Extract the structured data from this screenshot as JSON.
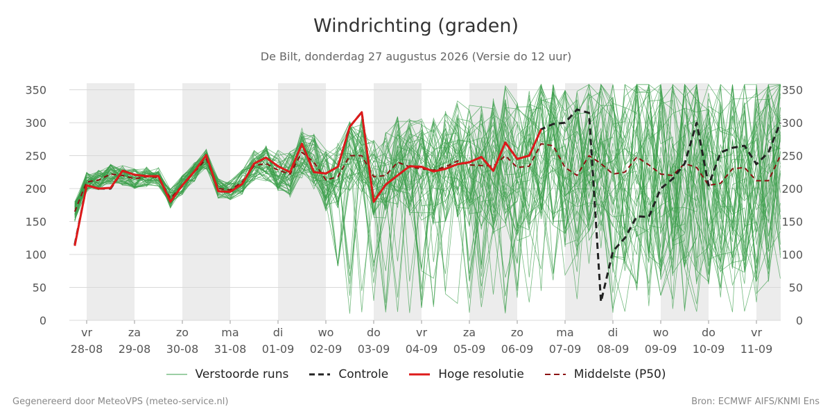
{
  "title": "Windrichting (graden)",
  "subtitle": "De Bilt, donderdag 27 augustus 2026 (Versie do 12 uur)",
  "footer_left": "Gegenereerd door MeteoVPS (meteo-service.nl)",
  "footer_right": "Bron: ECMWF AIFS/KNMI Ens",
  "legend": [
    {
      "label": "Verstoorde runs",
      "color": "#3a9e4a",
      "style": "thin"
    },
    {
      "label": "Controle",
      "color": "#222222",
      "style": "dashed"
    },
    {
      "label": "Hoge resolutie",
      "color": "#dd1a1a",
      "style": "solid"
    },
    {
      "label": "Middelste (P50)",
      "color": "#8b1010",
      "style": "dashed"
    }
  ],
  "chart_data": {
    "type": "line",
    "y_ticks": [
      0,
      50,
      100,
      150,
      200,
      250,
      300,
      350
    ],
    "ylim": [
      0,
      360
    ],
    "xlim": [
      -0.25,
      14.0
    ],
    "x_ticks": [
      {
        "day": "vr",
        "date": "28-08"
      },
      {
        "day": "za",
        "date": "29-08"
      },
      {
        "day": "zo",
        "date": "30-08"
      },
      {
        "day": "ma",
        "date": "31-08"
      },
      {
        "day": "di",
        "date": "01-09"
      },
      {
        "day": "wo",
        "date": "02-09"
      },
      {
        "day": "do",
        "date": "03-09"
      },
      {
        "day": "vr",
        "date": "04-09"
      },
      {
        "day": "za",
        "date": "05-09"
      },
      {
        "day": "zo",
        "date": "06-09"
      },
      {
        "day": "ma",
        "date": "07-09"
      },
      {
        "day": "di",
        "date": "08-09"
      },
      {
        "day": "wo",
        "date": "09-09"
      },
      {
        "day": "do",
        "date": "10-09"
      },
      {
        "day": "vr",
        "date": "11-09"
      }
    ],
    "shaded_days": [
      0,
      2,
      4,
      6,
      8,
      10,
      12,
      14
    ],
    "grid": true,
    "series": [
      {
        "name": "Hoge resolutie",
        "color": "#dd1a1a",
        "dash": false,
        "x": [
          -0.25,
          0,
          0.25,
          0.5,
          0.75,
          1.0,
          1.25,
          1.5,
          1.75,
          2.0,
          2.25,
          2.5,
          2.75,
          3.0,
          3.25,
          3.5,
          3.75,
          4.0,
          4.25,
          4.5,
          4.75,
          5.0,
          5.25,
          5.5,
          5.75,
          6.0,
          6.25,
          6.5,
          6.75,
          7.0,
          7.25,
          7.5,
          7.75,
          8.0,
          8.25,
          8.5,
          8.75,
          9.0,
          9.25,
          9.5
        ],
        "y": [
          113,
          205,
          200,
          201,
          227,
          221,
          219,
          219,
          180,
          205,
          226,
          251,
          196,
          195,
          207,
          238,
          247,
          234,
          225,
          268,
          225,
          223,
          233,
          294,
          316,
          180,
          206,
          220,
          234,
          233,
          226,
          230,
          237,
          240,
          248,
          227,
          270,
          245,
          250,
          290
        ]
      },
      {
        "name": "Controle",
        "color": "#222222",
        "dash": true,
        "x": [
          -0.25,
          0,
          0.25,
          0.5,
          0.75,
          1.0,
          1.25,
          1.5,
          1.75,
          2.0,
          2.25,
          2.5,
          2.75,
          3.0,
          3.25,
          3.5,
          3.75,
          4.0,
          4.25,
          4.5,
          4.75,
          5.0,
          5.25,
          5.5,
          5.75,
          6.0,
          6.25,
          6.5,
          6.75,
          7.0,
          7.25,
          7.5,
          7.75,
          8.0,
          8.25,
          8.5,
          8.75,
          9.0,
          9.25,
          9.5,
          9.75,
          10.0,
          10.25,
          10.5,
          10.75,
          11.0,
          11.25,
          11.5,
          11.75,
          12.0,
          12.25,
          12.5,
          12.75,
          13.0,
          13.25,
          13.5,
          13.75,
          14.0,
          14.25,
          14.5
        ],
        "y": [
          115,
          205,
          200,
          200,
          227,
          221,
          219,
          219,
          180,
          205,
          226,
          250,
          196,
          195,
          207,
          238,
          247,
          234,
          225,
          268,
          225,
          223,
          233,
          294,
          316,
          180,
          206,
          220,
          234,
          233,
          226,
          230,
          237,
          240,
          248,
          227,
          270,
          245,
          250,
          290,
          298,
          300,
          320,
          315,
          28,
          105,
          125,
          158,
          157,
          200,
          215,
          238,
          300,
          205,
          255,
          262,
          265,
          237,
          255,
          300
        ]
      },
      {
        "name": "Middelste (P50)",
        "color": "#8b1010",
        "dash": true,
        "x": [
          -0.25,
          0,
          0.25,
          0.5,
          0.75,
          1.0,
          1.25,
          1.5,
          1.75,
          2.0,
          2.25,
          2.5,
          2.75,
          3.0,
          3.25,
          3.5,
          3.75,
          4.0,
          4.25,
          4.5,
          4.75,
          5.0,
          5.25,
          5.5,
          5.75,
          6.0,
          6.25,
          6.5,
          6.75,
          7.0,
          7.25,
          7.5,
          7.75,
          8.0,
          8.25,
          8.5,
          8.75,
          9.0,
          9.25,
          9.5,
          9.75,
          10.0,
          10.25,
          10.5,
          10.75,
          11.0,
          11.25,
          11.5,
          11.75,
          12.0,
          12.25,
          12.5,
          12.75,
          13.0,
          13.25,
          13.5,
          13.75,
          14.0,
          14.25,
          14.5
        ],
        "y": [
          165,
          210,
          213,
          222,
          220,
          215,
          218,
          217,
          185,
          205,
          225,
          245,
          200,
          198,
          210,
          235,
          238,
          228,
          222,
          255,
          240,
          213,
          218,
          250,
          250,
          218,
          220,
          240,
          233,
          230,
          228,
          233,
          242,
          236,
          235,
          234,
          250,
          232,
          234,
          268,
          265,
          232,
          220,
          250,
          238,
          222,
          225,
          248,
          236,
          222,
          220,
          238,
          232,
          205,
          208,
          230,
          232,
          212,
          212,
          250
        ]
      }
    ]
  }
}
